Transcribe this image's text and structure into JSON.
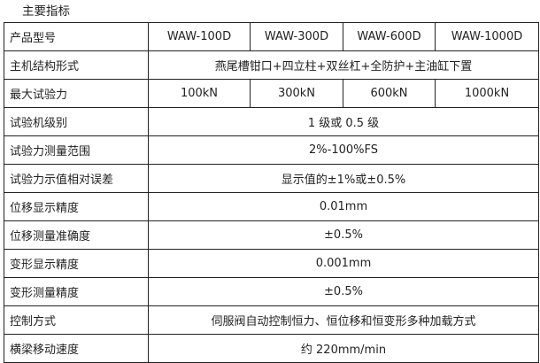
{
  "title": "主要指标",
  "rows": [
    {
      "label": "产品型号",
      "values": [
        "WAW-100D",
        "WAW-300D",
        "WAW-600D",
        "WAW-1000D"
      ]
    },
    {
      "label": "主机结构形式",
      "value": "燕尾槽钳口+四立柱+双丝杠+全防护+主油缸下置"
    },
    {
      "label": "最大试验力",
      "values": [
        "100kN",
        "300kN",
        "600kN",
        "1000kN"
      ]
    },
    {
      "label": "试验机级别",
      "value": "1 级或 0.5 级"
    },
    {
      "label": "试验力测量范围",
      "value": "2%-100%FS"
    },
    {
      "label": "试验力示值相对误差",
      "value": "显示值的±1%或±0.5%"
    },
    {
      "label": "位移显示精度",
      "value": "0.01mm"
    },
    {
      "label": "位移测量准确度",
      "value": "±0.5%"
    },
    {
      "label": "变形显示精度",
      "value": "0.001mm"
    },
    {
      "label": "变形测量精度",
      "value": "±0.5%"
    },
    {
      "label": "控制方式",
      "value": "伺服阀自动控制恒力、恒位移和恒变形多种加载方式"
    },
    {
      "label": "横梁移动速度",
      "value": "约 220mm/min"
    }
  ]
}
